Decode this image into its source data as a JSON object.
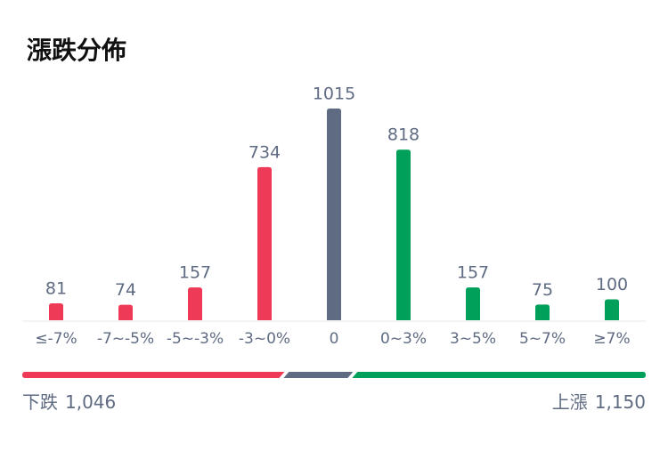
{
  "chart_data": {
    "type": "bar",
    "title": "漲跌分佈",
    "categories": [
      "≤-7%",
      "-7~-5%",
      "-5~-3%",
      "-3~0%",
      "0",
      "0~3%",
      "3~5%",
      "5~7%",
      "≥7%"
    ],
    "values": [
      81,
      74,
      157,
      734,
      1015,
      818,
      157,
      75,
      100
    ],
    "colors": [
      "#ee3a57",
      "#ee3a57",
      "#ee3a57",
      "#ee3a57",
      "#5f6b82",
      "#00a05a",
      "#00a05a",
      "#00a05a",
      "#00a05a"
    ],
    "summary": {
      "down": {
        "label": "下跌",
        "value": 1046,
        "value_label": "1,046",
        "color": "#ee3a57"
      },
      "flat_color": "#5f6b82",
      "up": {
        "label": "上漲",
        "value": 1150,
        "value_label": "1,150",
        "color": "#00a05a"
      }
    }
  }
}
